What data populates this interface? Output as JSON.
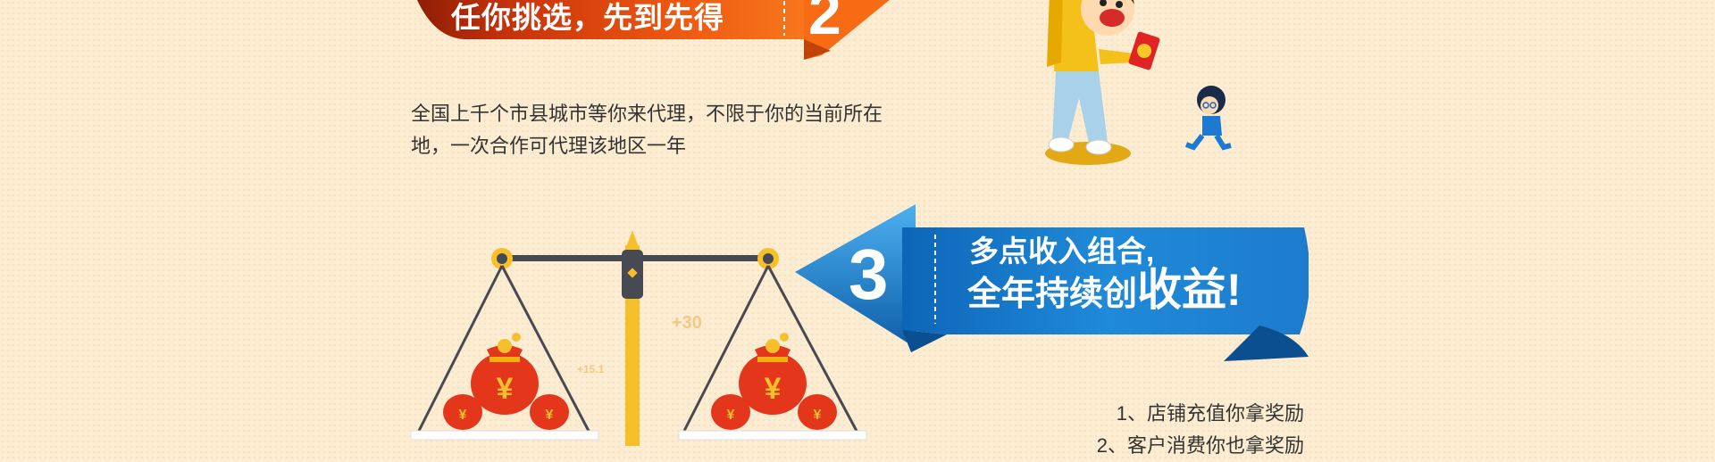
{
  "section2": {
    "banner_text": "任你挑选，先到先得",
    "number": "2",
    "description": "全国上千个市县城市等你来代理，不限于你的当前所在地，一次合作可代理该地区一年"
  },
  "section3": {
    "number": "3",
    "title_line1": "多点收入组合,",
    "title_line2_prefix": "全年持续创",
    "title_line2_big": "收益",
    "title_line2_suffix": "!",
    "items": [
      "1、店铺充值你拿奖励",
      "2、客户消费你也拿奖励"
    ]
  },
  "illustration": {
    "scale_label_1": "+30",
    "scale_label_2": "+15.1",
    "money_symbol": "¥"
  },
  "colors": {
    "background": "#fcedd2",
    "orange_banner": "#e8520f",
    "blue_banner": "#1976c8",
    "text": "#333333"
  }
}
